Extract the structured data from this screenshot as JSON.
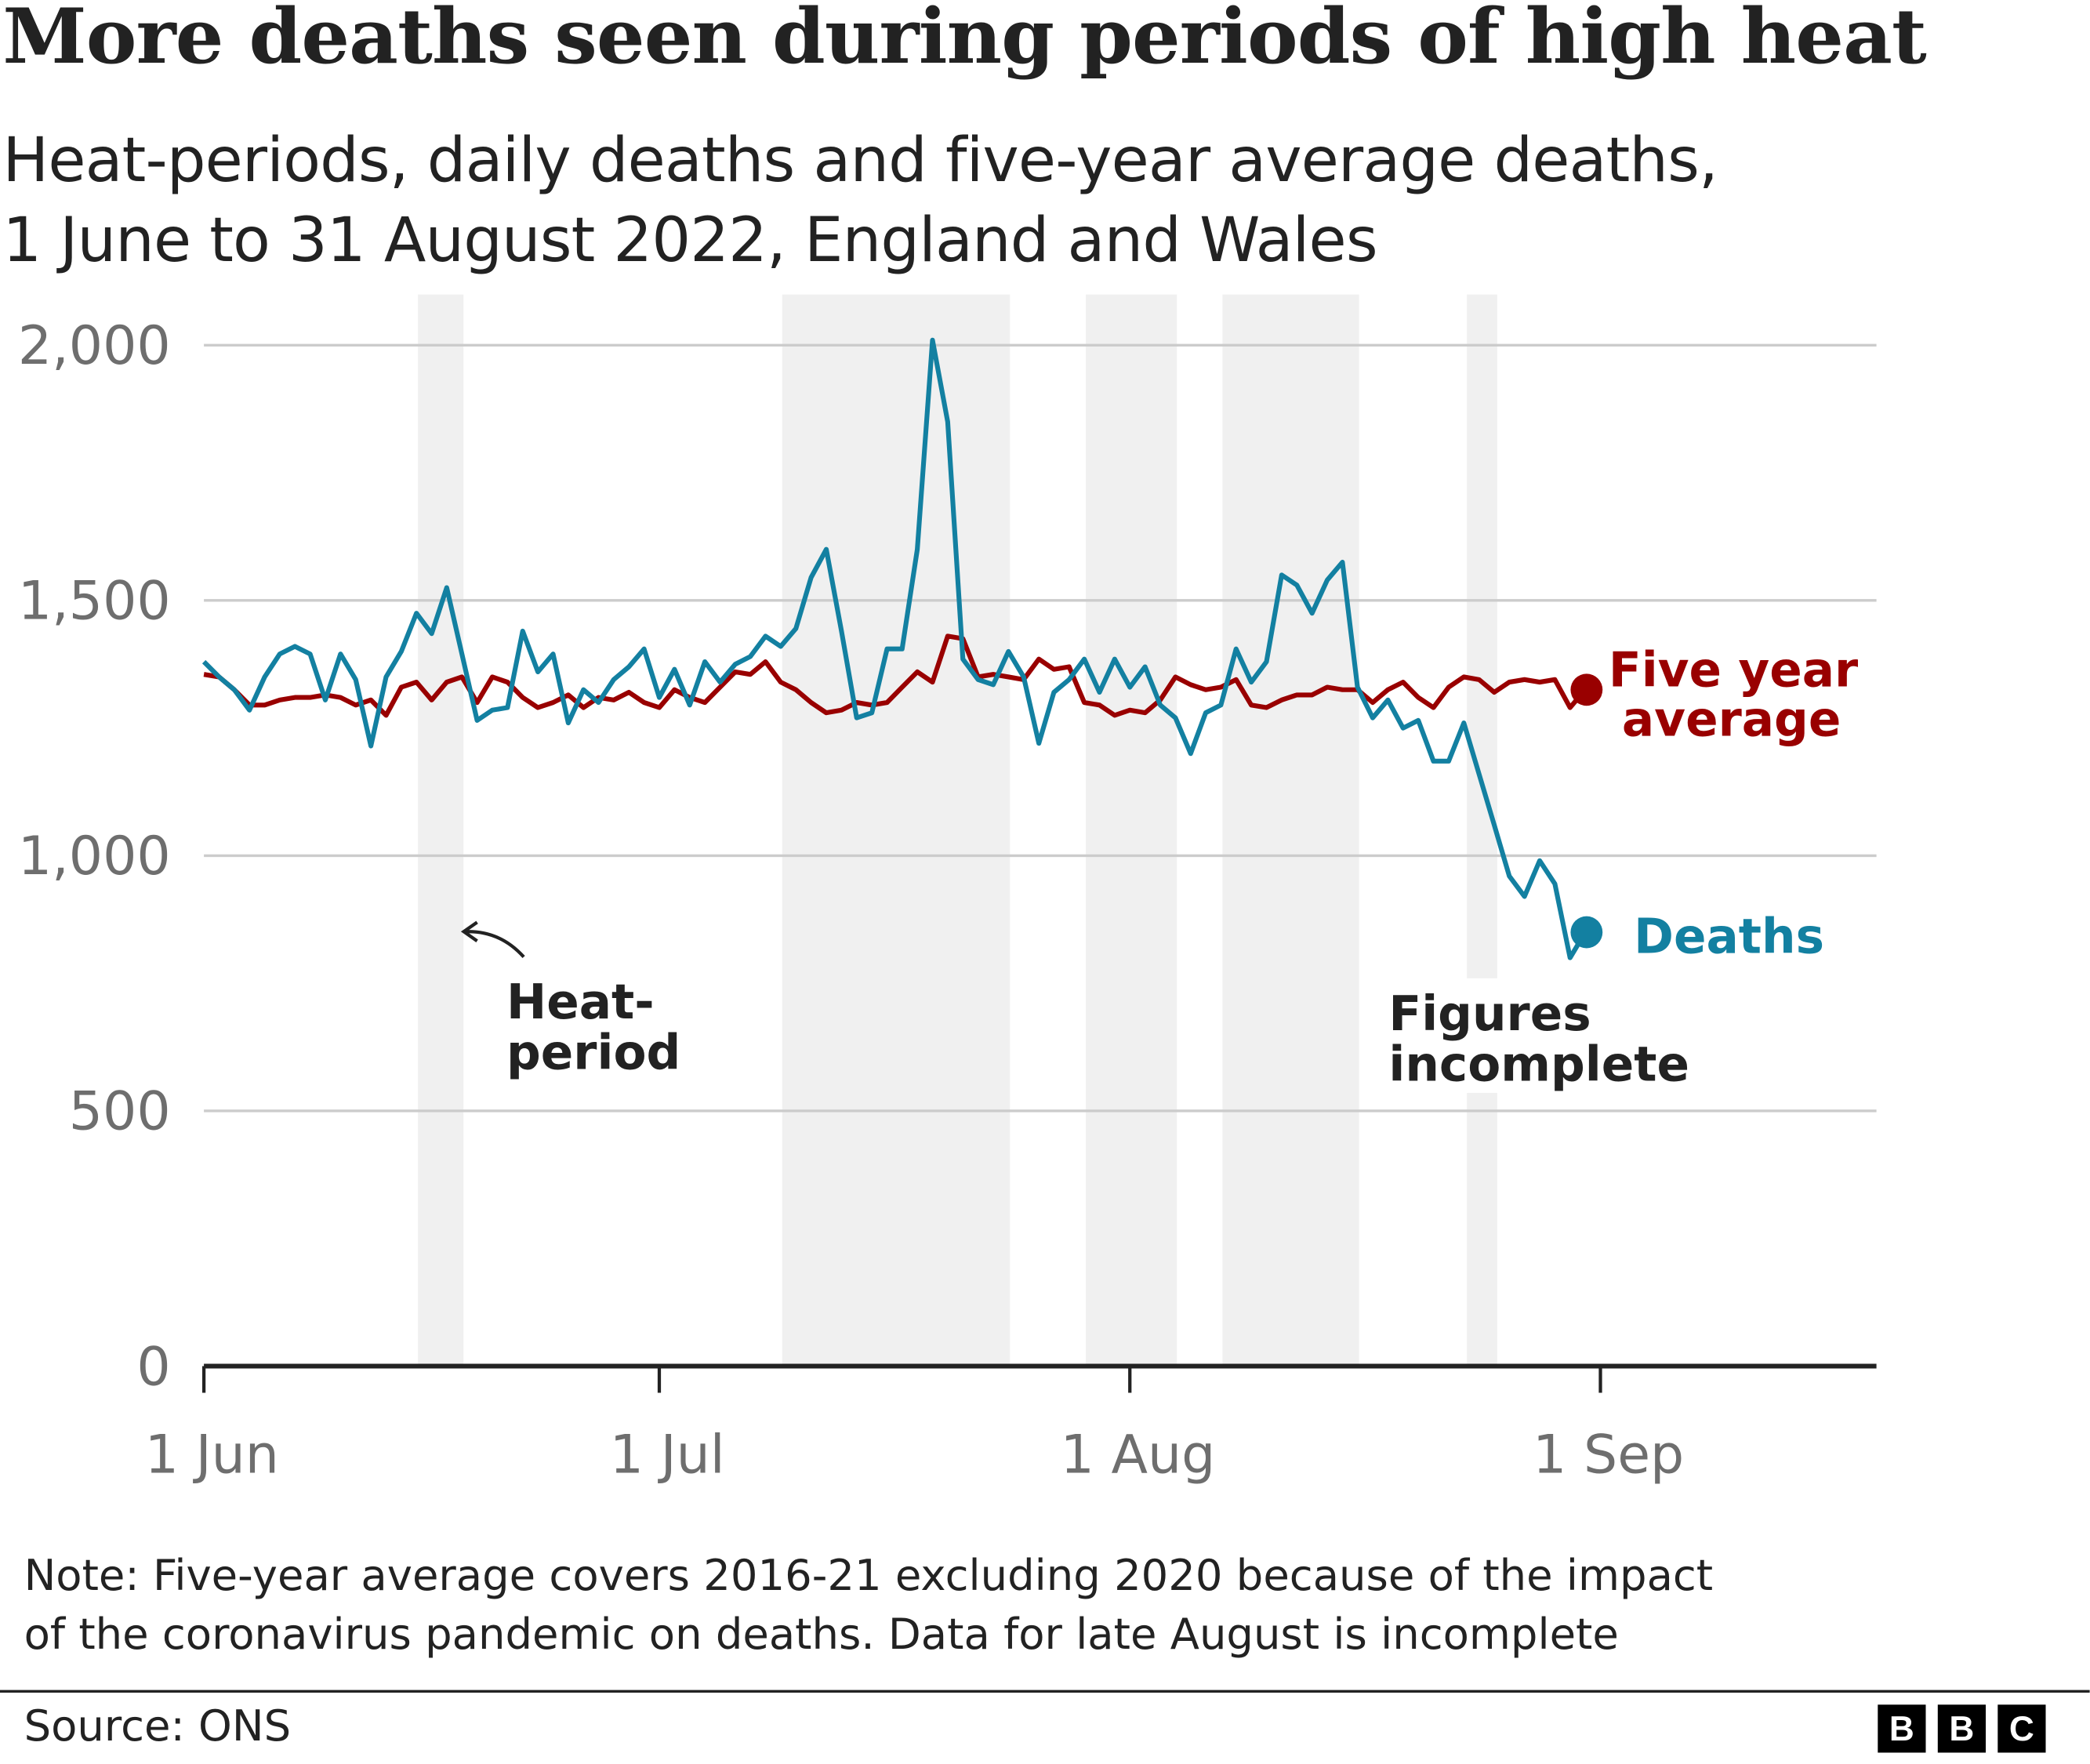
{
  "title": "More deaths seen during periods of high heat",
  "subtitle_line1": "Heat-periods, daily deaths and five-year average deaths,",
  "subtitle_line2": "1 June to 31 August 2022, England and Wales",
  "note_line1": "Note: Five-year average covers 2016-21 excluding 2020 because of the impact",
  "note_line2": "of the coronavirus pandemic on deaths. Data for late August is incomplete",
  "source": "Source: ONS",
  "logo_letters": [
    "B",
    "B",
    "C"
  ],
  "chart_data": {
    "type": "line",
    "title": "More deaths seen during periods of high heat",
    "x_start_date": "2022-06-01",
    "x_range_dates": [
      "2022-06-01",
      "2022-09-18"
    ],
    "ylim": [
      0,
      2000
    ],
    "grid": true,
    "y_ticks": [
      {
        "value": 0,
        "label": "0"
      },
      {
        "value": 500,
        "label": "500"
      },
      {
        "value": 1000,
        "label": "1,000"
      },
      {
        "value": 1500,
        "label": "1,500"
      },
      {
        "value": 2000,
        "label": "2,000"
      }
    ],
    "x_ticks": [
      {
        "date": "2022-06-01",
        "label": "1 Jun"
      },
      {
        "date": "2022-07-01",
        "label": "1 Jul"
      },
      {
        "date": "2022-08-01",
        "label": "1 Aug"
      },
      {
        "date": "2022-09-01",
        "label": "1 Sep"
      }
    ],
    "heat_periods": [
      {
        "start": "2022-06-16",
        "end": "2022-06-18"
      },
      {
        "start": "2022-07-10",
        "end": "2022-07-24"
      },
      {
        "start": "2022-07-30",
        "end": "2022-08-04"
      },
      {
        "start": "2022-08-08",
        "end": "2022-08-16"
      }
    ],
    "incomplete_period": {
      "start": "2022-08-24",
      "end": "2022-08-25"
    },
    "series": [
      {
        "name": "Deaths",
        "color": "#1380A1",
        "values": [
          1380,
          1350,
          1325,
          1285,
          1350,
          1395,
          1410,
          1395,
          1305,
          1395,
          1345,
          1215,
          1350,
          1400,
          1475,
          1435,
          1525,
          1395,
          1265,
          1285,
          1290,
          1440,
          1360,
          1395,
          1260,
          1325,
          1300,
          1345,
          1370,
          1405,
          1310,
          1365,
          1295,
          1380,
          1340,
          1375,
          1390,
          1430,
          1410,
          1445,
          1545,
          1600,
          1440,
          1270,
          1280,
          1405,
          1405,
          1600,
          2010,
          1850,
          1385,
          1345,
          1335,
          1400,
          1350,
          1220,
          1320,
          1345,
          1385,
          1320,
          1385,
          1330,
          1370,
          1295,
          1270,
          1200,
          1280,
          1295,
          1405,
          1340,
          1380,
          1550,
          1530,
          1475,
          1540,
          1575,
          1330,
          1270,
          1305,
          1250,
          1265,
          1185,
          1185,
          1260,
          1160,
          1060,
          960,
          920,
          990,
          945,
          800,
          850
        ]
      },
      {
        "name": "Five year average",
        "color": "#990000",
        "values": [
          1355,
          1350,
          1325,
          1295,
          1295,
          1305,
          1310,
          1310,
          1315,
          1310,
          1295,
          1305,
          1275,
          1330,
          1340,
          1305,
          1340,
          1350,
          1300,
          1350,
          1340,
          1310,
          1290,
          1300,
          1315,
          1290,
          1310,
          1305,
          1320,
          1300,
          1290,
          1325,
          1310,
          1300,
          1330,
          1360,
          1355,
          1380,
          1340,
          1325,
          1300,
          1280,
          1285,
          1300,
          1295,
          1300,
          1330,
          1360,
          1340,
          1430,
          1425,
          1350,
          1355,
          1350,
          1345,
          1385,
          1365,
          1370,
          1300,
          1295,
          1275,
          1285,
          1280,
          1305,
          1350,
          1335,
          1325,
          1330,
          1345,
          1295,
          1290,
          1305,
          1315,
          1315,
          1330,
          1325,
          1325,
          1300,
          1325,
          1340,
          1310,
          1290,
          1330,
          1350,
          1345,
          1320,
          1340,
          1345,
          1340,
          1345,
          1290,
          1325
        ]
      }
    ],
    "annotations": {
      "heat_period": [
        "Heat-",
        "period"
      ],
      "incomplete": [
        "Figures",
        "incomplete"
      ],
      "five_year_label": [
        "Five year",
        "average"
      ],
      "deaths_label": "Deaths"
    },
    "axis_color": "#222222",
    "grid_color": "#cccccc",
    "shade_color": "#f0f0f0"
  }
}
